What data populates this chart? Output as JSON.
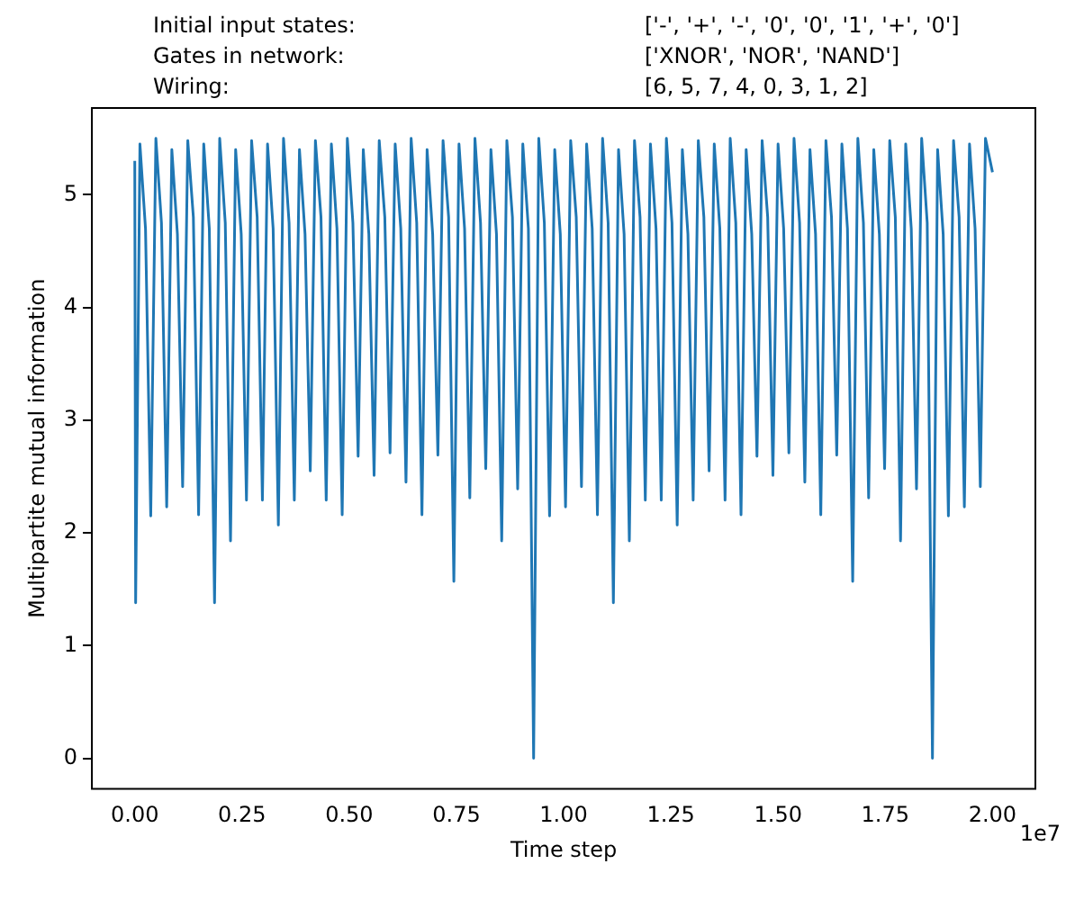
{
  "chart_data": {
    "type": "line",
    "xlabel": "Time step",
    "ylabel": "Multipartite mutual information",
    "color": "#1f77b4",
    "grid": false,
    "legend": false,
    "marker": "none",
    "line_style": "solid",
    "annotations": [
      "Initial input states:",
      "['-', '+', '-', '0', '0', '1', '+', '0']",
      "Gates in network:",
      "['XNOR', 'NOR', 'NAND']",
      "Wiring:",
      "[6, 5, 7, 4, 0, 3, 1, 2]",
      "1e7"
    ],
    "xlim": [
      -0.1,
      2.1
    ],
    "xticks": [
      {
        "value": 0,
        "label": "0.00"
      },
      {
        "value": 0.25,
        "label": "0.25"
      },
      {
        "value": 0.5,
        "label": "0.50"
      },
      {
        "value": 0.75,
        "label": "0.75"
      },
      {
        "value": 1,
        "label": "1.00"
      },
      {
        "value": 1.25,
        "label": "1.25"
      },
      {
        "value": 1.5,
        "label": "1.50"
      },
      {
        "value": 1.75,
        "label": "1.75"
      },
      {
        "value": 2,
        "label": "2.00"
      }
    ],
    "ylim": [
      -0.27,
      5.77
    ],
    "yticks": [
      0,
      1,
      2,
      3,
      4,
      5
    ],
    "x": [
      0,
      0.002,
      0.012,
      0.025,
      0.0372,
      0.0492,
      0.0622,
      0.0744,
      0.0864,
      0.0994,
      0.1116,
      0.1236,
      0.1366,
      0.1488,
      0.1608,
      0.1738,
      0.186,
      0.198,
      0.211,
      0.2232,
      0.2352,
      0.2482,
      0.2604,
      0.2724,
      0.2854,
      0.2976,
      0.3096,
      0.3226,
      0.3348,
      0.3468,
      0.3598,
      0.372,
      0.384,
      0.397,
      0.4092,
      0.4212,
      0.4342,
      0.4464,
      0.4584,
      0.4714,
      0.4836,
      0.4956,
      0.5086,
      0.5208,
      0.5328,
      0.5458,
      0.558,
      0.57,
      0.583,
      0.5952,
      0.6072,
      0.6202,
      0.6324,
      0.6444,
      0.6574,
      0.6696,
      0.6816,
      0.6946,
      0.7068,
      0.7188,
      0.7318,
      0.744,
      0.756,
      0.769,
      0.7812,
      0.7932,
      0.8062,
      0.8184,
      0.8304,
      0.8434,
      0.8556,
      0.8676,
      0.8806,
      0.8928,
      0.9048,
      0.9178,
      0.93,
      0.942,
      0.955,
      0.9672,
      0.9792,
      0.9922,
      1.0044,
      1.0164,
      1.0294,
      1.0416,
      1.0536,
      1.0666,
      1.0788,
      1.0908,
      1.1038,
      1.116,
      1.128,
      1.141,
      1.1532,
      1.1652,
      1.1782,
      1.1904,
      1.2024,
      1.2154,
      1.2276,
      1.2396,
      1.2526,
      1.2648,
      1.2768,
      1.2898,
      1.302,
      1.314,
      1.327,
      1.3392,
      1.3512,
      1.3642,
      1.3764,
      1.3884,
      1.4014,
      1.4136,
      1.4256,
      1.4386,
      1.4508,
      1.4628,
      1.4758,
      1.488,
      1.5,
      1.513,
      1.5252,
      1.5372,
      1.5502,
      1.5624,
      1.5744,
      1.5874,
      1.5996,
      1.6116,
      1.6246,
      1.6368,
      1.6488,
      1.6618,
      1.674,
      1.686,
      1.699,
      1.7112,
      1.7232,
      1.7362,
      1.7484,
      1.7604,
      1.7734,
      1.7856,
      1.7976,
      1.8106,
      1.8228,
      1.8348,
      1.8478,
      1.86,
      1.872,
      1.885,
      1.8972,
      1.9092,
      1.9222,
      1.9344,
      1.9464,
      1.9594,
      1.9716,
      1.9836,
      2.0
    ],
    "values": [
      5.3,
      1.38,
      5.45,
      4.7,
      2.15,
      5.5,
      4.75,
      2.23,
      5.4,
      4.65,
      2.41,
      5.48,
      4.8,
      2.16,
      5.45,
      4.7,
      1.38,
      5.5,
      4.75,
      1.93,
      5.4,
      4.65,
      2.29,
      5.48,
      4.8,
      2.29,
      5.45,
      4.7,
      2.07,
      5.5,
      4.75,
      2.29,
      5.4,
      4.65,
      2.55,
      5.48,
      4.8,
      2.29,
      5.45,
      4.7,
      2.16,
      5.5,
      4.75,
      2.68,
      5.4,
      4.65,
      2.51,
      5.48,
      4.8,
      2.71,
      5.45,
      4.7,
      2.45,
      5.5,
      4.75,
      2.16,
      5.4,
      4.65,
      2.69,
      5.48,
      4.8,
      1.57,
      5.45,
      4.7,
      2.31,
      5.5,
      4.75,
      2.57,
      5.4,
      4.65,
      1.93,
      5.48,
      4.8,
      2.39,
      5.45,
      4.7,
      0.0,
      5.5,
      4.75,
      2.15,
      5.4,
      4.65,
      2.23,
      5.48,
      4.8,
      2.41,
      5.45,
      4.7,
      2.16,
      5.5,
      4.75,
      1.38,
      5.4,
      4.65,
      1.93,
      5.48,
      4.8,
      2.29,
      5.45,
      4.7,
      2.29,
      5.5,
      4.75,
      2.07,
      5.4,
      4.65,
      2.29,
      5.48,
      4.8,
      2.55,
      5.45,
      4.7,
      2.29,
      5.5,
      4.75,
      2.16,
      5.4,
      4.65,
      2.68,
      5.48,
      4.8,
      2.51,
      5.45,
      4.7,
      2.71,
      5.5,
      4.75,
      2.45,
      5.4,
      4.65,
      2.16,
      5.48,
      4.8,
      2.69,
      5.45,
      4.7,
      1.57,
      5.5,
      4.75,
      2.31,
      5.4,
      4.65,
      2.57,
      5.48,
      4.8,
      1.93,
      5.45,
      4.7,
      2.39,
      5.5,
      4.75,
      0.0,
      5.4,
      4.65,
      2.15,
      5.48,
      4.8,
      2.23,
      5.45,
      4.7,
      2.41,
      5.5,
      5.2
    ]
  }
}
